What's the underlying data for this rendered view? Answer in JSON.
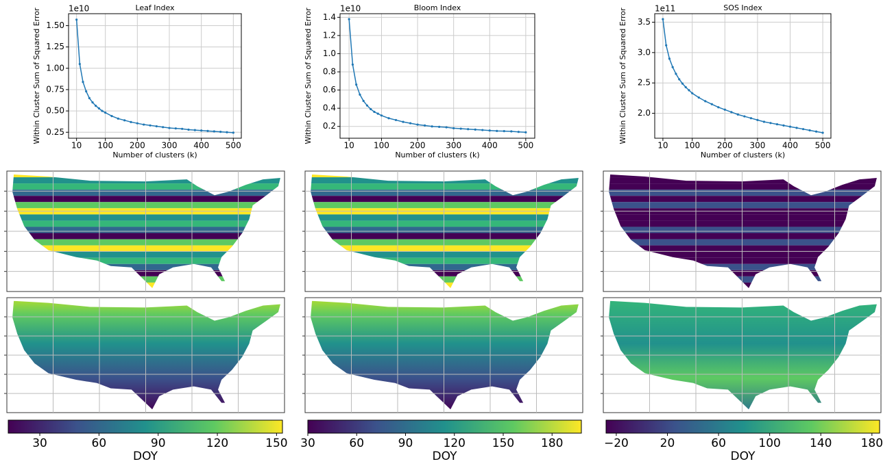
{
  "chart_data": [
    {
      "type": "line",
      "title": "Leaf Index",
      "offset_label": "1e10",
      "xlabel": "Number of clusters (k)",
      "ylabel": "Within Cluster Sum of Squared Error",
      "color": "#1f77b4",
      "grid": true,
      "x": [
        10,
        20,
        30,
        40,
        50,
        60,
        70,
        80,
        90,
        100,
        120,
        140,
        160,
        180,
        200,
        220,
        240,
        260,
        280,
        300,
        320,
        340,
        360,
        380,
        400,
        420,
        440,
        460,
        480,
        500
      ],
      "values": [
        1.57,
        1.05,
        0.84,
        0.73,
        0.65,
        0.6,
        0.56,
        0.53,
        0.5,
        0.48,
        0.44,
        0.41,
        0.39,
        0.37,
        0.355,
        0.34,
        0.33,
        0.32,
        0.31,
        0.3,
        0.295,
        0.29,
        0.28,
        0.275,
        0.27,
        0.265,
        0.26,
        0.255,
        0.25,
        0.245
      ],
      "xlim": [
        -15,
        525
      ],
      "xticks": [
        10,
        100,
        200,
        300,
        400,
        500
      ],
      "ylim": [
        0.18,
        1.64
      ],
      "yticks": [
        {
          "value": 0.25,
          "label": "0.25"
        },
        {
          "value": 0.5,
          "label": "0.50"
        },
        {
          "value": 0.75,
          "label": "0.75"
        },
        {
          "value": 1.0,
          "label": "1.00"
        },
        {
          "value": 1.25,
          "label": "1.25"
        },
        {
          "value": 1.5,
          "label": "1.50"
        }
      ]
    },
    {
      "type": "line",
      "title": "Bloom Index",
      "offset_label": "1e10",
      "xlabel": "Number of clusters (k)",
      "ylabel": "Within Cluster Sum of Squared Error",
      "color": "#1f77b4",
      "grid": true,
      "x": [
        10,
        20,
        30,
        40,
        50,
        60,
        70,
        80,
        90,
        100,
        120,
        140,
        160,
        180,
        200,
        220,
        240,
        260,
        280,
        300,
        320,
        340,
        360,
        380,
        400,
        420,
        440,
        460,
        480,
        500
      ],
      "values": [
        1.38,
        0.88,
        0.66,
        0.55,
        0.48,
        0.43,
        0.39,
        0.36,
        0.34,
        0.32,
        0.29,
        0.27,
        0.25,
        0.235,
        0.22,
        0.21,
        0.2,
        0.195,
        0.19,
        0.18,
        0.175,
        0.17,
        0.165,
        0.16,
        0.155,
        0.15,
        0.148,
        0.145,
        0.14,
        0.135
      ],
      "xlim": [
        -15,
        525
      ],
      "xticks": [
        10,
        100,
        200,
        300,
        400,
        500
      ],
      "ylim": [
        0.07,
        1.44
      ],
      "yticks": [
        0.2,
        0.4,
        0.6,
        0.8,
        {
          "value": 1.0,
          "label": "1.0"
        },
        1.2,
        1.4
      ]
    },
    {
      "type": "line",
      "title": "SOS Index",
      "offset_label": "1e11",
      "xlabel": "Number of clusters (k)",
      "ylabel": "Within Cluster Sum of Squared Error",
      "color": "#1f77b4",
      "grid": true,
      "x": [
        10,
        20,
        30,
        40,
        50,
        60,
        70,
        80,
        90,
        100,
        120,
        140,
        160,
        180,
        200,
        220,
        240,
        260,
        280,
        300,
        320,
        340,
        360,
        380,
        400,
        420,
        440,
        460,
        480,
        500
      ],
      "values": [
        3.55,
        3.12,
        2.9,
        2.76,
        2.65,
        2.56,
        2.49,
        2.43,
        2.38,
        2.33,
        2.26,
        2.2,
        2.15,
        2.1,
        2.06,
        2.02,
        1.98,
        1.95,
        1.92,
        1.89,
        1.86,
        1.84,
        1.82,
        1.8,
        1.78,
        1.76,
        1.74,
        1.72,
        1.7,
        1.68
      ],
      "xlim": [
        -15,
        525
      ],
      "xticks": [
        10,
        100,
        200,
        300,
        400,
        500
      ],
      "ylim": [
        1.59,
        3.64
      ],
      "yticks": [
        {
          "value": 2.0,
          "label": "2.0"
        },
        2.5,
        {
          "value": 3.0,
          "label": "3.0"
        },
        3.5
      ]
    },
    {
      "type": "colorbar",
      "label": "DOY",
      "colors": [
        "#440154",
        "#3b528b",
        "#21918c",
        "#5ec962",
        "#fde725"
      ],
      "lim": [
        14,
        153
      ],
      "ticks": [
        30,
        60,
        90,
        120,
        150
      ]
    },
    {
      "type": "colorbar",
      "label": "DOY",
      "colors": [
        "#440154",
        "#3b528b",
        "#21918c",
        "#5ec962",
        "#fde725"
      ],
      "lim": [
        30,
        198
      ],
      "ticks": [
        30,
        60,
        90,
        120,
        150,
        180
      ]
    },
    {
      "type": "colorbar",
      "label": "DOY",
      "colors": [
        "#440154",
        "#3b528b",
        "#21918c",
        "#5ec962",
        "#fde725"
      ],
      "lim": [
        -28,
        186
      ],
      "ticks": [
        {
          "value": -20,
          "label": "−20"
        },
        20,
        60,
        100,
        140,
        180
      ]
    }
  ]
}
